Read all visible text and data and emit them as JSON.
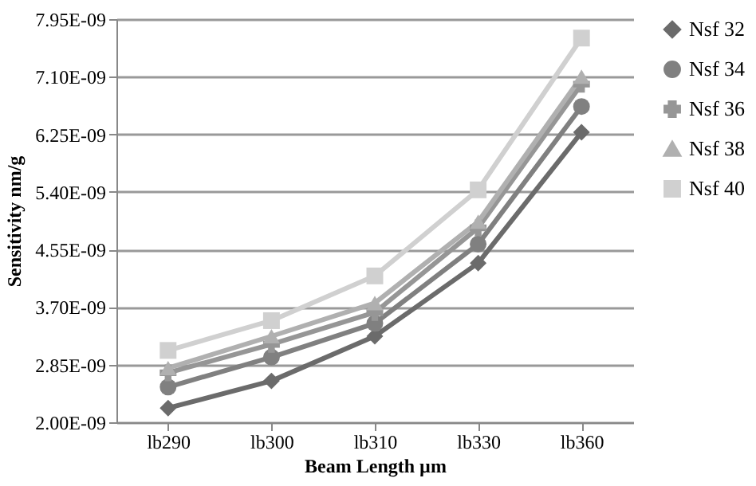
{
  "chart_data": {
    "type": "line",
    "xlabel": "Beam Length µm",
    "ylabel": "Sensitivity nm/g",
    "categories": [
      "lb290",
      "lb300",
      "lb310",
      "lb330",
      "lb360"
    ],
    "series": [
      {
        "name": "Nsf 32",
        "color": "#6b6b6b",
        "marker": "diamond",
        "values": [
          2.21e-09,
          2.61e-09,
          3.27e-09,
          4.35e-09,
          6.28e-09
        ]
      },
      {
        "name": "Nsf 34",
        "color": "#808080",
        "marker": "circle",
        "values": [
          2.52e-09,
          2.96e-09,
          3.46e-09,
          4.63e-09,
          6.66e-09
        ]
      },
      {
        "name": "Nsf 36",
        "color": "#969696",
        "marker": "cross",
        "values": [
          2.73e-09,
          3.15e-09,
          3.62e-09,
          4.87e-09,
          6.99e-09
        ]
      },
      {
        "name": "Nsf 38",
        "color": "#b0b0b0",
        "marker": "triangle",
        "values": [
          2.8e-09,
          3.27e-09,
          3.76e-09,
          4.96e-09,
          7.1e-09
        ]
      },
      {
        "name": "Nsf 40",
        "color": "#d0d0d0",
        "marker": "square",
        "values": [
          3.06e-09,
          3.5e-09,
          4.16e-09,
          5.43e-09,
          7.67e-09
        ]
      }
    ],
    "ylim": [
      2e-09,
      7.95e-09
    ],
    "yticks": [
      {
        "value": 2e-09,
        "label": "2.00E-09"
      },
      {
        "value": 2.85e-09,
        "label": "2.85E-09"
      },
      {
        "value": 3.7e-09,
        "label": "3.70E-09"
      },
      {
        "value": 4.55e-09,
        "label": "4.55E-09"
      },
      {
        "value": 5.4e-09,
        "label": "5.40E-09"
      },
      {
        "value": 6.25e-09,
        "label": "6.25E-09"
      },
      {
        "value": 7.1e-09,
        "label": "7.10E-09"
      },
      {
        "value": 7.95e-09,
        "label": "7.95E-09"
      }
    ],
    "grid": "y",
    "legend": "right",
    "line_style": "solid"
  }
}
